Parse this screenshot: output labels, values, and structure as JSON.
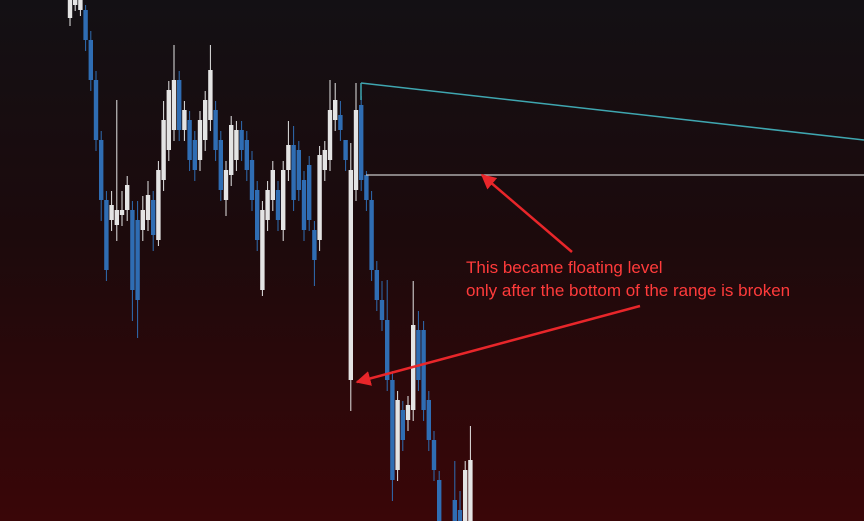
{
  "chart_data": {
    "type": "candlestick",
    "open": [
      503,
      516,
      511,
      511,
      481,
      441,
      381,
      321,
      301,
      296,
      306,
      311,
      311,
      301,
      291,
      301,
      321,
      281,
      341,
      371,
      391,
      441,
      391,
      401,
      381,
      361,
      381,
      401,
      411,
      381,
      321,
      346,
      361,
      391,
      381,
      361,
      331,
      231,
      301,
      321,
      331,
      291,
      351,
      376,
      371,
      341,
      356,
      291,
      281,
      351,
      361,
      401,
      406,
      381,
      141,
      331,
      416,
      346,
      321,
      251,
      221,
      201,
      141,
      51,
      111,
      101,
      111,
      191,
      191,
      121,
      81,
      41,
      null,
      null,
      21,
      11,
      0,
      0
    ],
    "high": [
      521,
      521,
      521,
      516,
      490,
      450,
      390,
      330,
      330,
      421,
      330,
      345,
      320,
      320,
      325,
      340,
      330,
      360,
      420,
      440,
      476,
      450,
      420,
      410,
      390,
      410,
      430,
      476,
      420,
      390,
      360,
      405,
      400,
      400,
      390,
      370,
      340,
      320,
      340,
      360,
      340,
      360,
      400,
      395,
      380,
      350,
      365,
      300,
      375,
      380,
      441,
      438,
      420,
      380,
      378,
      438,
      425,
      350,
      330,
      260,
      240,
      241,
      150,
      130,
      120,
      125,
      240,
      210,
      200,
      130,
      90,
      50,
      null,
      null,
      60,
      30,
      60,
      95
    ],
    "low": [
      495,
      510,
      505,
      470,
      430,
      370,
      300,
      240,
      290,
      280,
      295,
      300,
      200,
      183,
      280,
      290,
      270,
      275,
      330,
      360,
      380,
      380,
      380,
      350,
      340,
      350,
      370,
      390,
      360,
      320,
      305,
      335,
      350,
      360,
      340,
      310,
      270,
      225,
      290,
      310,
      290,
      280,
      340,
      310,
      320,
      280,
      290,
      235,
      270,
      340,
      350,
      390,
      380,
      350,
      110,
      320,
      330,
      310,
      240,
      210,
      190,
      130,
      20,
      40,
      70,
      90,
      100,
      130,
      100,
      70,
      40,
      0,
      null,
      null,
      0,
      0,
      0,
      0
    ],
    "close": [
      521,
      521,
      521,
      481,
      441,
      381,
      321,
      251,
      316,
      311,
      311,
      336,
      231,
      221,
      311,
      326,
      286,
      351,
      401,
      431,
      441,
      391,
      411,
      361,
      351,
      401,
      421,
      451,
      371,
      331,
      351,
      396,
      391,
      371,
      351,
      321,
      281,
      311,
      331,
      351,
      301,
      351,
      376,
      321,
      331,
      291,
      301,
      261,
      366,
      371,
      411,
      421,
      391,
      361,
      351,
      411,
      341,
      321,
      251,
      221,
      201,
      141,
      41,
      121,
      81,
      116,
      196,
      141,
      111,
      81,
      51,
      0,
      null,
      null,
      0,
      0,
      51,
      61
    ],
    "up_color": "#e4e4e4",
    "down_color": "#2f6db3",
    "ylim": [
      0,
      521
    ],
    "annotations": [
      "This became floating level",
      "only after the bottom of the range is broken"
    ]
  }
}
